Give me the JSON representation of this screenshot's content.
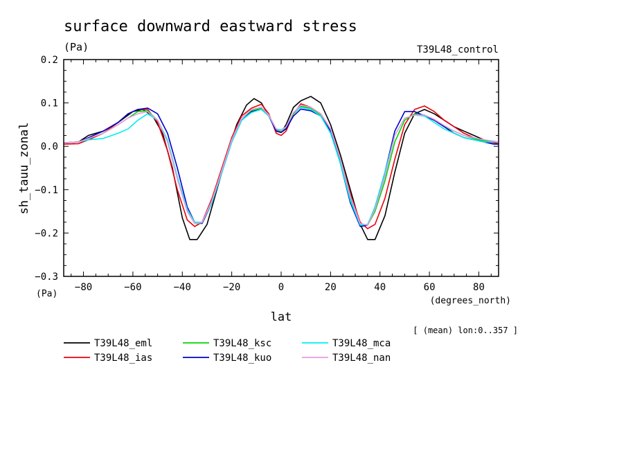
{
  "chart_data": {
    "type": "line",
    "title": "surface downward eastward stress",
    "units_label": "(Pa)",
    "experiment_label": "T39L48_control",
    "ylabel": "sh_tauu_zonal",
    "yunits_bottom": "(Pa)",
    "xlabel": "lat",
    "xunits": "(degrees_north)",
    "footnote": "[ (mean) lon:0..357 ]",
    "xlim": [
      -88,
      88
    ],
    "ylim": [
      -0.3,
      0.2
    ],
    "x_ticks": [
      -80,
      -60,
      -40,
      -20,
      0,
      20,
      40,
      60,
      80
    ],
    "x_tick_labels": [
      "−80",
      "−60",
      "−40",
      "−20",
      "0",
      "20",
      "40",
      "60",
      "80"
    ],
    "y_ticks": [
      0.2,
      0.1,
      0.0,
      -0.1,
      -0.2,
      -0.3
    ],
    "y_tick_labels": [
      "0.2",
      "0.1",
      "0.0",
      "−0.1",
      "−0.2",
      "−0.3"
    ],
    "legend_position": "bottom-left",
    "series": [
      {
        "name": "T39L48_eml",
        "color": "#000000",
        "x": [
          -88,
          -82,
          -78,
          -72,
          -66,
          -60,
          -56,
          -52,
          -48,
          -44,
          -40,
          -37,
          -34,
          -30,
          -26,
          -22,
          -18,
          -14,
          -11,
          -8,
          -5,
          -2,
          0,
          2,
          5,
          8,
          12,
          16,
          20,
          24,
          28,
          32,
          35,
          38,
          42,
          46,
          50,
          54,
          58,
          62,
          66,
          70,
          74,
          78,
          82,
          86,
          88
        ],
        "y": [
          0.008,
          0.01,
          0.025,
          0.035,
          0.055,
          0.08,
          0.085,
          0.07,
          0.03,
          -0.05,
          -0.165,
          -0.215,
          -0.215,
          -0.18,
          -0.1,
          -0.02,
          0.05,
          0.095,
          0.11,
          0.1,
          0.07,
          0.035,
          0.032,
          0.05,
          0.09,
          0.105,
          0.115,
          0.1,
          0.05,
          -0.02,
          -0.1,
          -0.18,
          -0.215,
          -0.215,
          -0.16,
          -0.06,
          0.03,
          0.075,
          0.085,
          0.075,
          0.06,
          0.045,
          0.035,
          0.025,
          0.015,
          0.01,
          0.005
        ]
      },
      {
        "name": "T39L48_ias",
        "color": "#e8000b",
        "x": [
          -88,
          -82,
          -78,
          -72,
          -66,
          -62,
          -58,
          -54,
          -50,
          -46,
          -42,
          -38,
          -35,
          -32,
          -28,
          -24,
          -20,
          -16,
          -12,
          -8,
          -5,
          -2,
          0,
          2,
          5,
          8,
          12,
          16,
          20,
          24,
          28,
          32,
          35,
          38,
          42,
          46,
          50,
          54,
          58,
          62,
          66,
          70,
          74,
          78,
          82,
          86,
          88
        ],
        "y": [
          0.005,
          0.006,
          0.015,
          0.03,
          0.055,
          0.075,
          0.085,
          0.085,
          0.055,
          -0.01,
          -0.1,
          -0.17,
          -0.185,
          -0.175,
          -0.12,
          -0.05,
          0.02,
          0.07,
          0.088,
          0.097,
          0.075,
          0.03,
          0.025,
          0.035,
          0.075,
          0.098,
          0.09,
          0.075,
          0.04,
          -0.03,
          -0.11,
          -0.175,
          -0.19,
          -0.18,
          -0.12,
          -0.03,
          0.05,
          0.085,
          0.093,
          0.08,
          0.06,
          0.045,
          0.03,
          0.02,
          0.012,
          0.008,
          0.006
        ]
      },
      {
        "name": "T39L48_ksc",
        "color": "#00d400",
        "x": [
          -88,
          -82,
          -78,
          -72,
          -66,
          -62,
          -58,
          -54,
          -50,
          -46,
          -42,
          -38,
          -35,
          -32,
          -28,
          -24,
          -20,
          -16,
          -12,
          -8,
          -5,
          -2,
          0,
          2,
          5,
          8,
          12,
          16,
          20,
          24,
          28,
          32,
          35,
          38,
          42,
          46,
          50,
          54,
          58,
          62,
          66,
          70,
          74,
          78,
          82,
          86,
          88
        ],
        "y": [
          0.008,
          0.01,
          0.018,
          0.03,
          0.05,
          0.065,
          0.08,
          0.082,
          0.06,
          0.01,
          -0.075,
          -0.15,
          -0.178,
          -0.178,
          -0.13,
          -0.06,
          0.01,
          0.06,
          0.082,
          0.088,
          0.072,
          0.038,
          0.034,
          0.042,
          0.075,
          0.092,
          0.088,
          0.072,
          0.035,
          -0.035,
          -0.12,
          -0.182,
          -0.182,
          -0.15,
          -0.08,
          0.01,
          0.06,
          0.075,
          0.072,
          0.06,
          0.045,
          0.035,
          0.025,
          0.018,
          0.012,
          0.01,
          0.01
        ]
      },
      {
        "name": "T39L48_kuo",
        "color": "#0000c8",
        "x": [
          -88,
          -82,
          -78,
          -72,
          -66,
          -62,
          -58,
          -54,
          -50,
          -46,
          -42,
          -38,
          -35,
          -32,
          -28,
          -24,
          -20,
          -16,
          -12,
          -8,
          -5,
          -2,
          0,
          2,
          5,
          8,
          12,
          16,
          20,
          24,
          28,
          32,
          35,
          38,
          42,
          46,
          50,
          54,
          58,
          62,
          66,
          70,
          74,
          78,
          82,
          86,
          88
        ],
        "y": [
          0.008,
          0.01,
          0.02,
          0.035,
          0.055,
          0.075,
          0.085,
          0.088,
          0.075,
          0.03,
          -0.05,
          -0.14,
          -0.175,
          -0.178,
          -0.13,
          -0.06,
          0.01,
          0.06,
          0.08,
          0.085,
          0.07,
          0.035,
          0.032,
          0.04,
          0.07,
          0.086,
          0.082,
          0.07,
          0.035,
          -0.04,
          -0.13,
          -0.185,
          -0.182,
          -0.14,
          -0.06,
          0.035,
          0.08,
          0.08,
          0.07,
          0.06,
          0.045,
          0.03,
          0.02,
          0.015,
          0.01,
          0.005,
          0.005
        ]
      },
      {
        "name": "T39L48_mca",
        "color": "#00eeee",
        "x": [
          -88,
          -82,
          -78,
          -72,
          -66,
          -62,
          -58,
          -54,
          -50,
          -46,
          -42,
          -38,
          -35,
          -32,
          -28,
          -24,
          -20,
          -16,
          -12,
          -8,
          -5,
          -2,
          0,
          2,
          5,
          8,
          12,
          16,
          20,
          24,
          28,
          32,
          35,
          38,
          42,
          46,
          50,
          54,
          58,
          62,
          66,
          70,
          74,
          78,
          82,
          86,
          88
        ],
        "y": [
          0.008,
          0.01,
          0.015,
          0.018,
          0.03,
          0.04,
          0.06,
          0.075,
          0.06,
          0.015,
          -0.07,
          -0.145,
          -0.175,
          -0.175,
          -0.13,
          -0.06,
          0.01,
          0.06,
          0.078,
          0.085,
          0.07,
          0.04,
          0.038,
          0.045,
          0.078,
          0.09,
          0.085,
          0.07,
          0.03,
          -0.04,
          -0.125,
          -0.182,
          -0.18,
          -0.14,
          -0.06,
          0.025,
          0.065,
          0.072,
          0.07,
          0.055,
          0.04,
          0.03,
          0.02,
          0.015,
          0.01,
          0.01,
          0.01
        ]
      },
      {
        "name": "T39L48_nan",
        "color": "#e89be0",
        "x": [
          -88,
          -82,
          -78,
          -72,
          -66,
          -62,
          -58,
          -54,
          -50,
          -46,
          -42,
          -38,
          -35,
          -32,
          -28,
          -24,
          -20,
          -16,
          -12,
          -8,
          -5,
          -2,
          0,
          2,
          5,
          8,
          12,
          16,
          20,
          24,
          28,
          32,
          35,
          38,
          42,
          46,
          50,
          54,
          58,
          62,
          66,
          70,
          74,
          78,
          82,
          86,
          88
        ],
        "y": [
          0.008,
          0.01,
          0.018,
          0.03,
          0.05,
          0.065,
          0.075,
          0.08,
          0.06,
          0.01,
          -0.075,
          -0.15,
          -0.178,
          -0.176,
          -0.125,
          -0.055,
          0.015,
          0.065,
          0.085,
          0.09,
          0.072,
          0.04,
          0.036,
          0.045,
          0.078,
          0.095,
          0.09,
          0.075,
          0.04,
          -0.03,
          -0.115,
          -0.178,
          -0.182,
          -0.145,
          -0.07,
          0.025,
          0.065,
          0.072,
          0.072,
          0.062,
          0.048,
          0.035,
          0.025,
          0.02,
          0.015,
          0.012,
          0.01
        ]
      }
    ]
  }
}
